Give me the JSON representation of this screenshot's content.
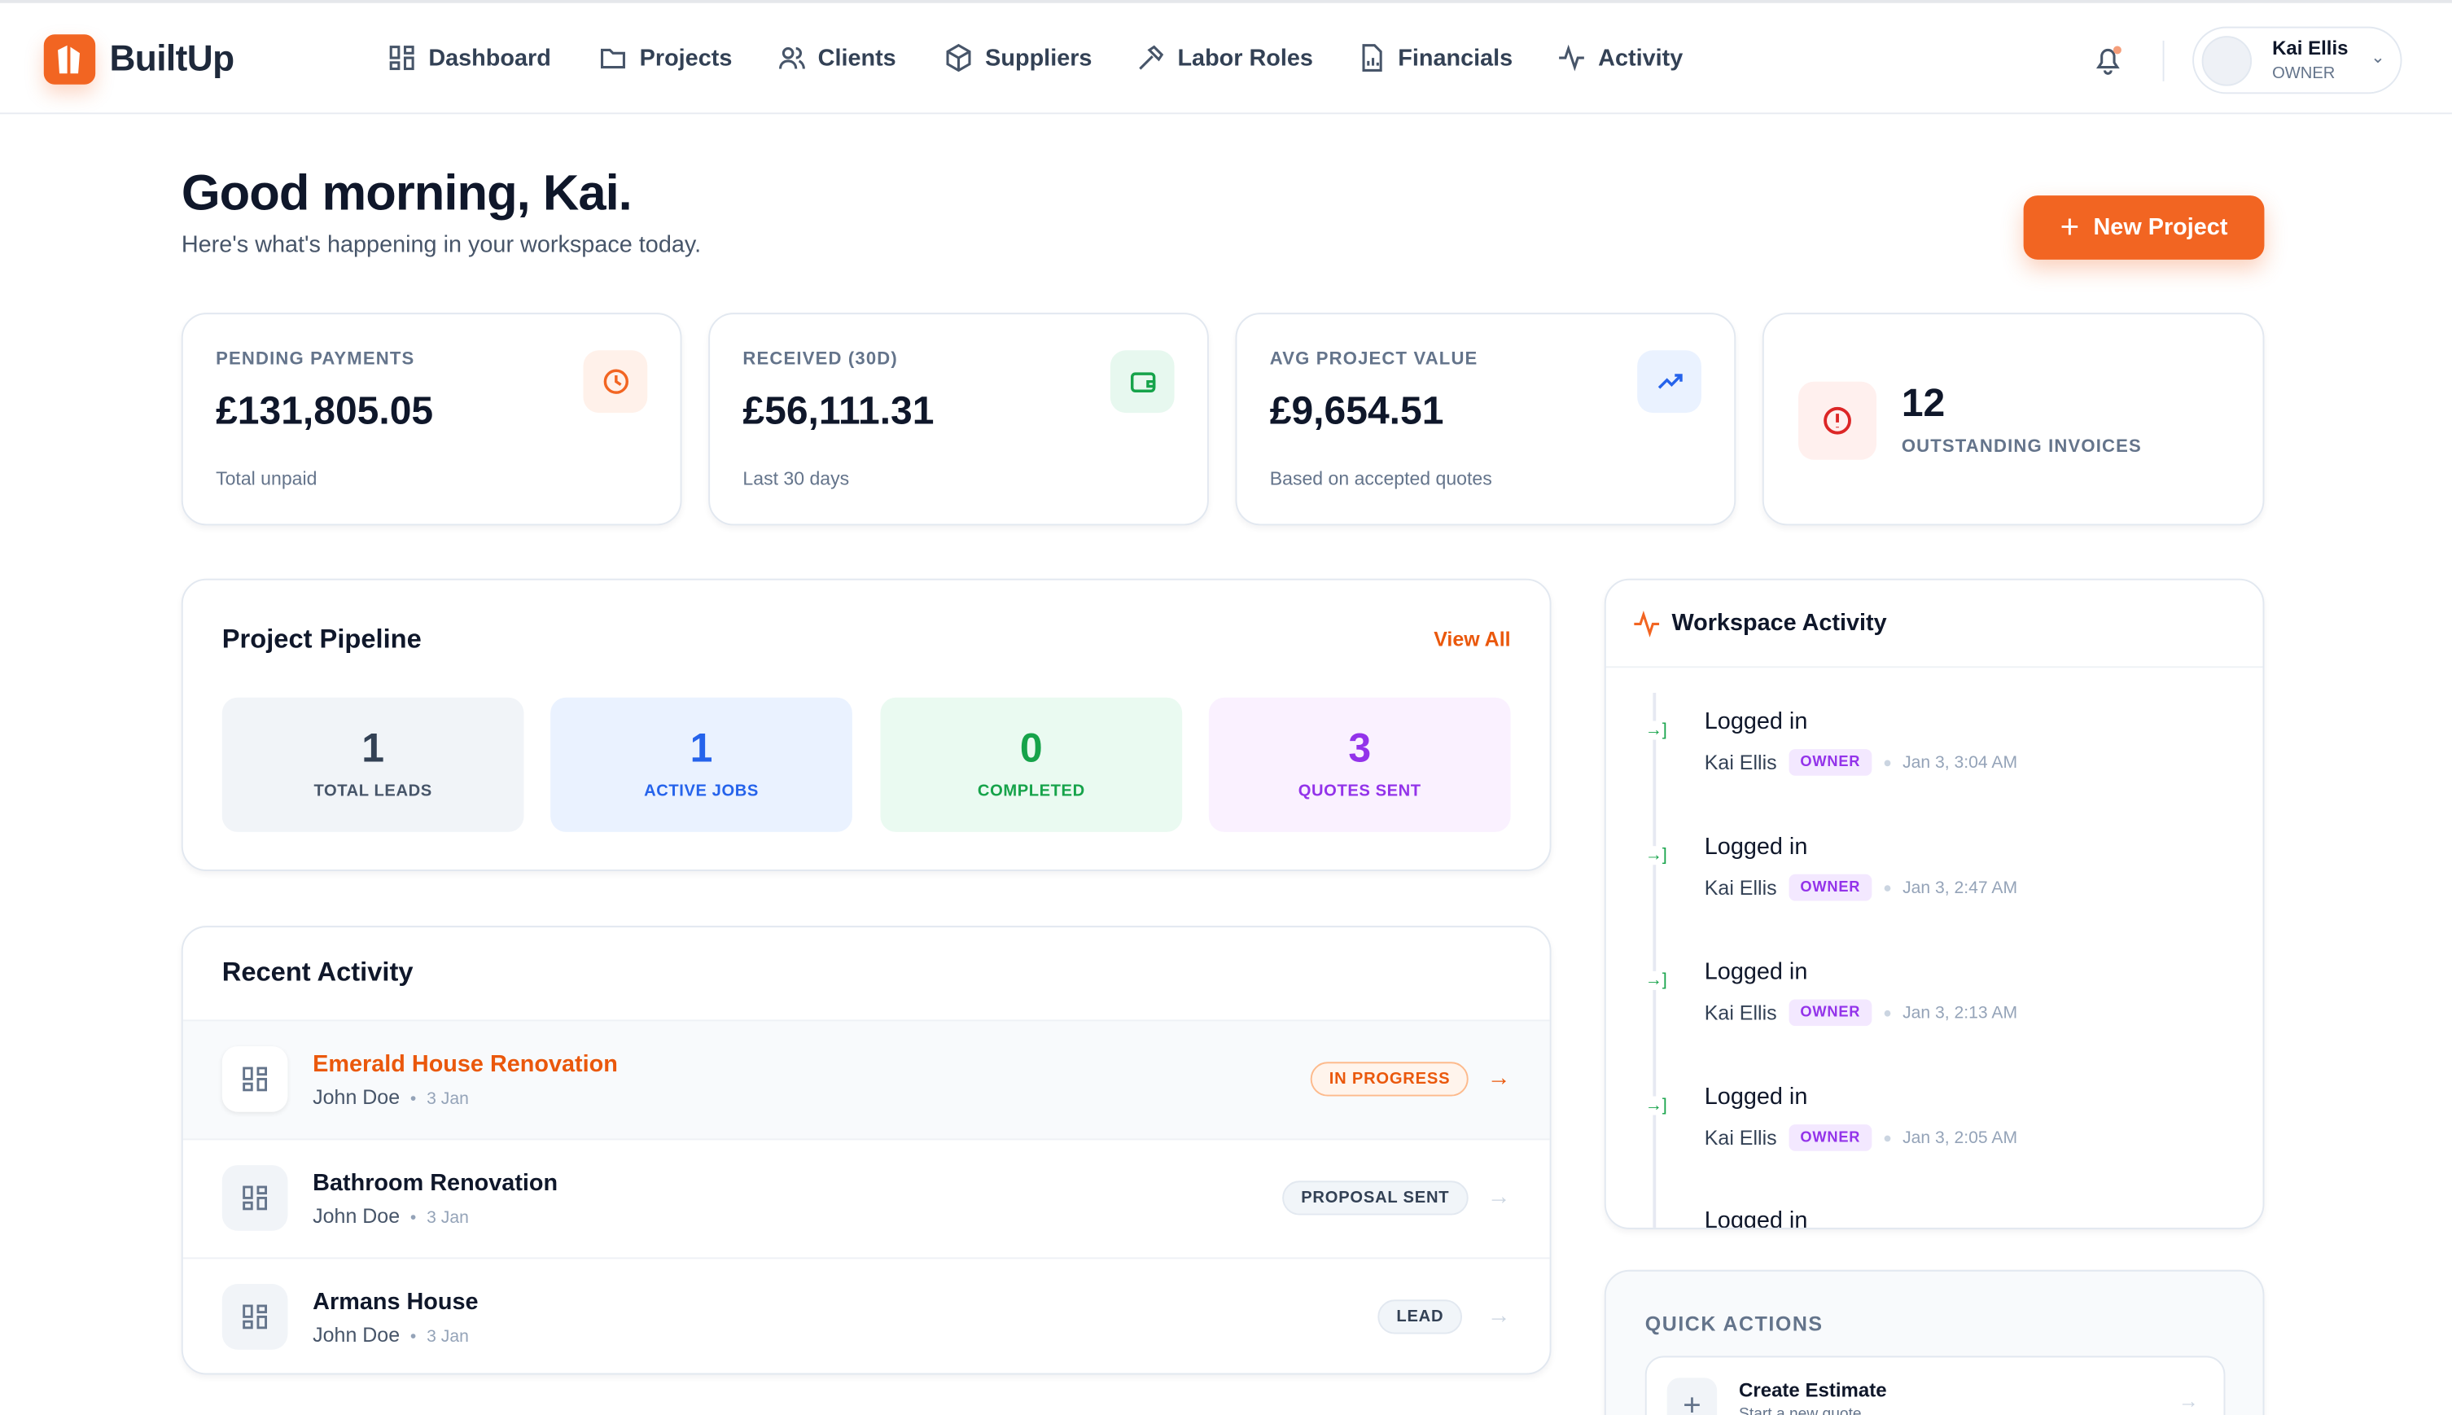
{
  "app": {
    "brand": "BuiltUp",
    "accent": "#f26522"
  },
  "nav": {
    "items": [
      {
        "label": "Dashboard",
        "icon": "grid-icon"
      },
      {
        "label": "Projects",
        "icon": "folder-icon"
      },
      {
        "label": "Clients",
        "icon": "users-icon"
      },
      {
        "label": "Suppliers",
        "icon": "box-icon"
      },
      {
        "label": "Labor Roles",
        "icon": "hammer-icon"
      },
      {
        "label": "Financials",
        "icon": "file-chart-icon"
      },
      {
        "label": "Activity",
        "icon": "activity-icon"
      }
    ]
  },
  "user": {
    "name": "Kai Ellis",
    "role": "OWNER"
  },
  "header": {
    "greeting": "Good morning, Kai.",
    "subtitle": "Here's what's happening in your workspace today.",
    "new_project": "New Project"
  },
  "stats": [
    {
      "label": "PENDING PAYMENTS",
      "value": "£131,805.05",
      "sub": "Total unpaid",
      "icon": "clock-icon"
    },
    {
      "label": "RECEIVED (30D)",
      "value": "£56,111.31",
      "sub": "Last 30 days",
      "icon": "wallet-icon"
    },
    {
      "label": "AVG PROJECT VALUE",
      "value": "£9,654.51",
      "sub": "Based on accepted quotes",
      "icon": "trending-up-icon"
    },
    {
      "label": "OUTSTANDING INVOICES",
      "value": "12",
      "icon": "alert-circle-icon"
    }
  ],
  "pipeline": {
    "title": "Project Pipeline",
    "view_all": "View All",
    "tiles": [
      {
        "value": "1",
        "label": "TOTAL LEADS"
      },
      {
        "value": "1",
        "label": "ACTIVE JOBS"
      },
      {
        "value": "0",
        "label": "COMPLETED"
      },
      {
        "value": "3",
        "label": "QUOTES SENT"
      }
    ]
  },
  "recent": {
    "title": "Recent Activity",
    "rows": [
      {
        "title": "Emerald House Renovation",
        "client": "John Doe",
        "date": "3 Jan",
        "status": "IN PROGRESS"
      },
      {
        "title": "Bathroom Renovation",
        "client": "John Doe",
        "date": "3 Jan",
        "status": "PROPOSAL SENT"
      },
      {
        "title": "Armans House",
        "client": "John Doe",
        "date": "3 Jan",
        "status": "LEAD"
      }
    ]
  },
  "workspace": {
    "title": "Workspace Activity",
    "items": [
      {
        "action": "Logged in",
        "user": "Kai Ellis",
        "role": "OWNER",
        "time": "Jan 3, 3:04 AM"
      },
      {
        "action": "Logged in",
        "user": "Kai Ellis",
        "role": "OWNER",
        "time": "Jan 3, 2:47 AM"
      },
      {
        "action": "Logged in",
        "user": "Kai Ellis",
        "role": "OWNER",
        "time": "Jan 3, 2:13 AM"
      },
      {
        "action": "Logged in",
        "user": "Kai Ellis",
        "role": "OWNER",
        "time": "Jan 3, 2:05 AM"
      },
      {
        "action": "Logged in"
      }
    ]
  },
  "quick_actions": {
    "title": "QUICK ACTIONS",
    "items": [
      {
        "title": "Create Estimate",
        "sub": "Start a new quote"
      }
    ]
  }
}
